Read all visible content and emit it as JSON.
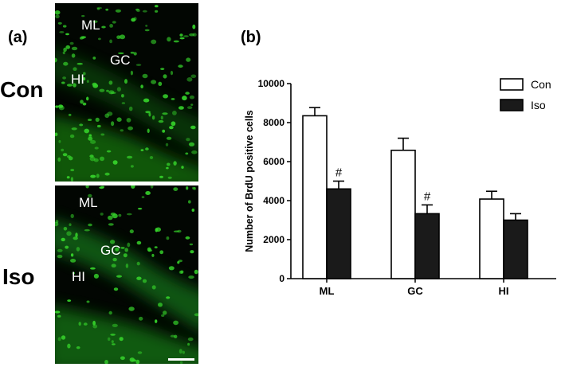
{
  "figure": {
    "panel_a_label": "(a)",
    "panel_b_label": "(b)",
    "row_labels": [
      "Con",
      "Iso"
    ],
    "micrographs": [
      {
        "regions": [
          "ML",
          "GC",
          "HI"
        ]
      },
      {
        "regions": [
          "ML",
          "GC",
          "HI"
        ]
      }
    ]
  },
  "colors": {
    "fluorescence": "#35d12a",
    "background": "#020602",
    "con_bar": "#ffffff",
    "iso_bar": "#1a1a1a"
  },
  "chart_data": {
    "type": "bar",
    "ylabel": "Number of BrdU positive cells",
    "xlabel": "",
    "categories": [
      "ML",
      "GC",
      "HI"
    ],
    "ylim": [
      0,
      10000
    ],
    "yticks": [
      "0",
      "2000",
      "4000",
      "6000",
      "8000",
      "10000"
    ],
    "legend_position": "top-right",
    "series": [
      {
        "name": "Con",
        "values": [
          8350,
          6580,
          4080
        ],
        "errors": [
          420,
          620,
          400
        ]
      },
      {
        "name": "Iso",
        "values": [
          4600,
          3330,
          3000
        ],
        "errors": [
          400,
          450,
          330
        ]
      }
    ],
    "annotations": [
      {
        "series": "Iso",
        "category": "ML",
        "text": "#"
      },
      {
        "series": "Iso",
        "category": "GC",
        "text": "#"
      }
    ]
  }
}
